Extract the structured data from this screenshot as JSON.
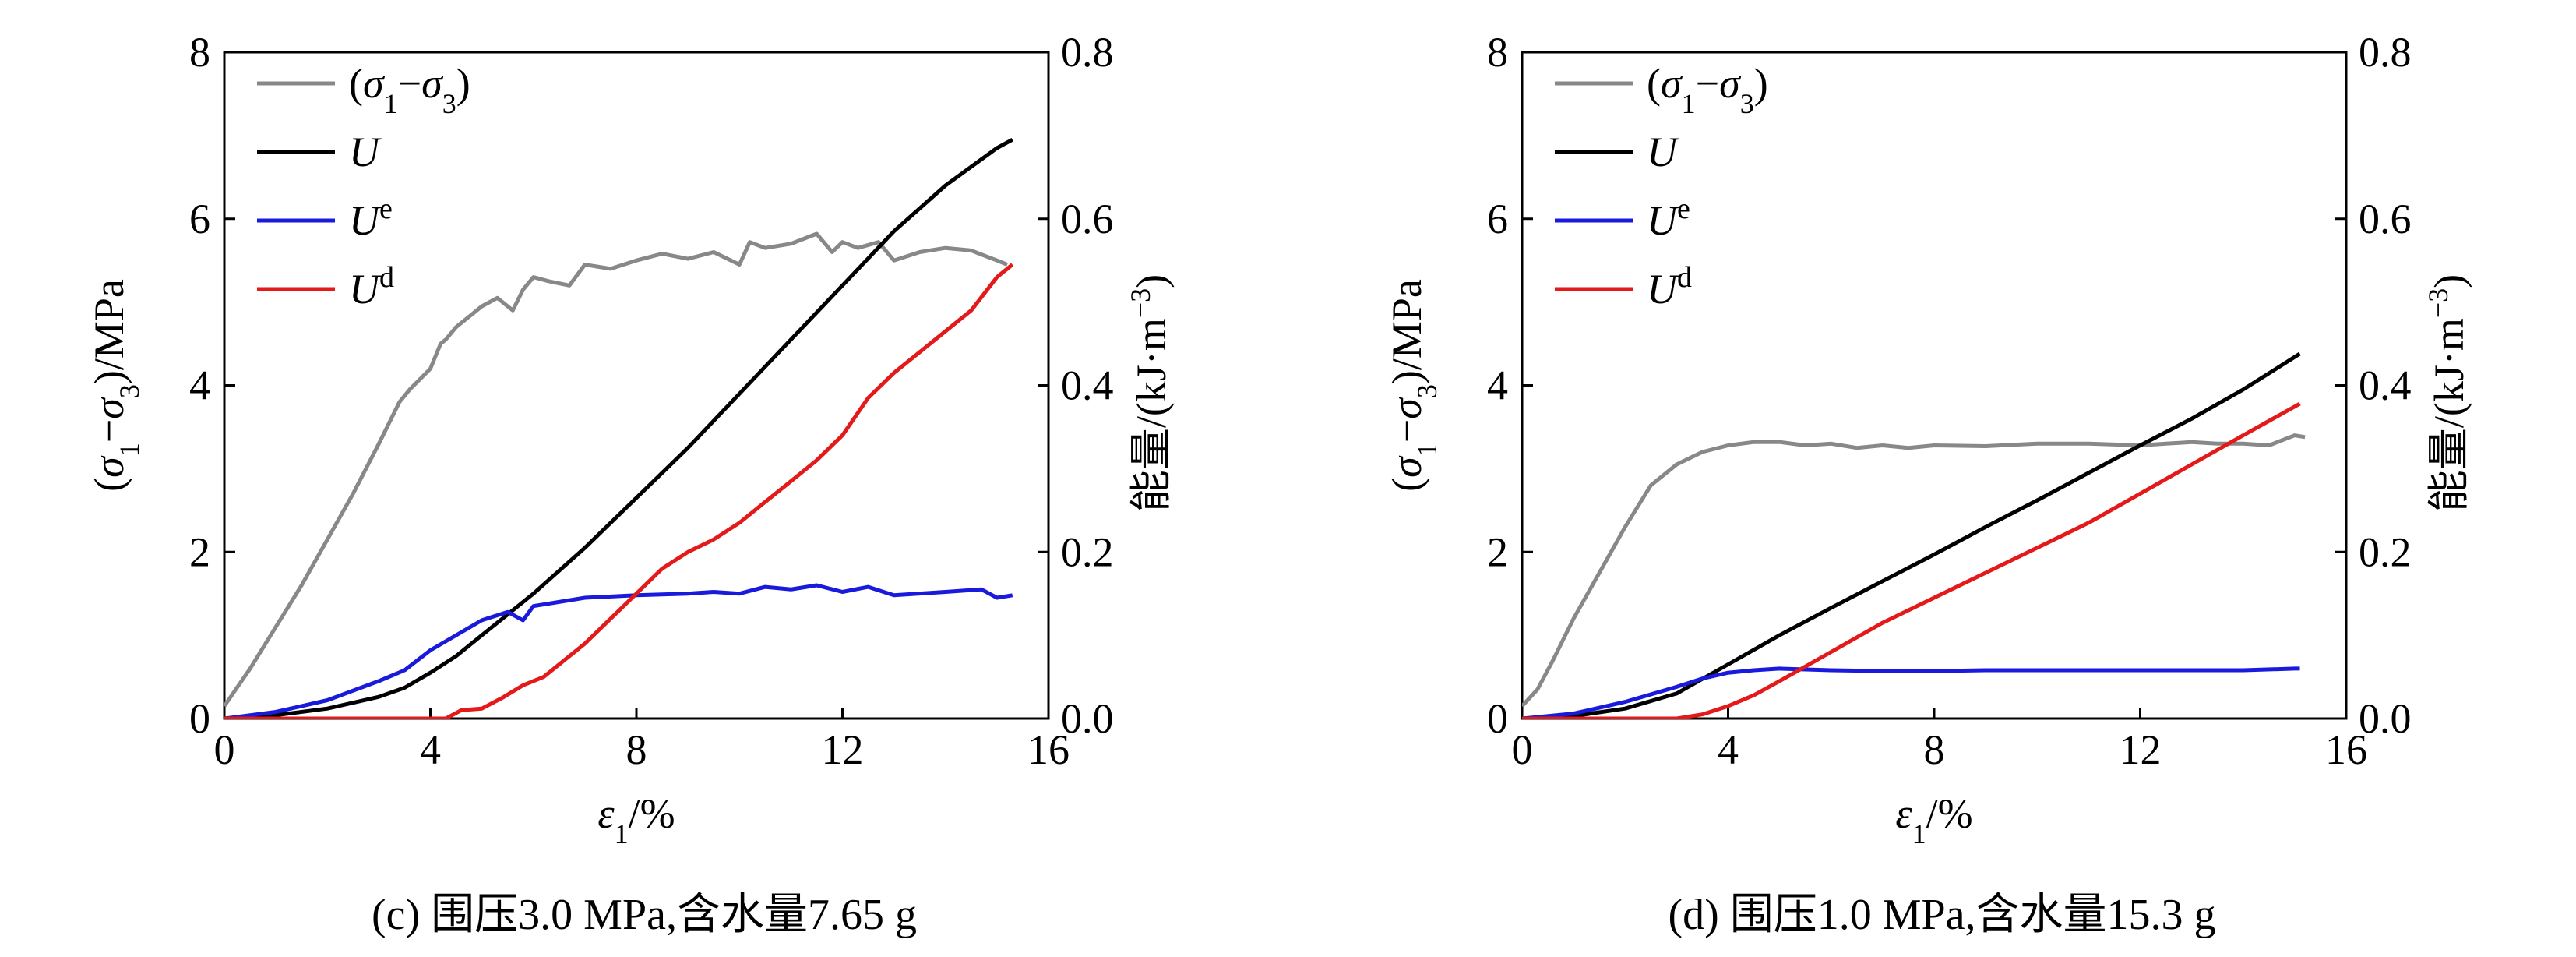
{
  "chart_data": [
    {
      "type": "line",
      "caption": "(c) 围压3.0 MPa,含水量7.65 g",
      "xlabel": "ε1/%",
      "ylabel_left": "(σ1−σ3)/MPa",
      "ylabel_right": "能量/(kJ·m−3)",
      "xlim": [
        0,
        16
      ],
      "ylim_left": [
        0,
        8
      ],
      "ylim_right": [
        0,
        0.8
      ],
      "xticks": [
        0,
        4,
        8,
        12,
        16
      ],
      "yticks_left": [
        0,
        2,
        4,
        6,
        8
      ],
      "yticks_right": [
        0.0,
        0.2,
        0.4,
        0.6,
        0.8
      ],
      "legend_position": "top-left",
      "grid": false,
      "series": [
        {
          "name": "(σ1−σ3)",
          "axis": "left",
          "color": "#888888",
          "x": [
            0,
            0.5,
            1,
            1.5,
            2,
            2.5,
            3,
            3.4,
            3.6,
            4,
            4.2,
            4.3,
            4.5,
            4.8,
            5,
            5.3,
            5.6,
            5.8,
            6,
            6.3,
            6.7,
            7,
            7.5,
            8,
            8.5,
            9,
            9.5,
            10,
            10.2,
            10.5,
            11,
            11.5,
            11.8,
            12,
            12.3,
            12.7,
            13,
            13.5,
            14,
            14.5,
            15,
            15.2
          ],
          "y": [
            0.15,
            0.6,
            1.1,
            1.6,
            2.15,
            2.7,
            3.3,
            3.8,
            3.95,
            4.2,
            4.5,
            4.55,
            4.7,
            4.85,
            4.95,
            5.05,
            4.9,
            5.15,
            5.3,
            5.25,
            5.2,
            5.45,
            5.4,
            5.5,
            5.58,
            5.52,
            5.6,
            5.45,
            5.72,
            5.65,
            5.7,
            5.82,
            5.6,
            5.72,
            5.65,
            5.72,
            5.5,
            5.6,
            5.65,
            5.62,
            5.5,
            5.45
          ]
        },
        {
          "name": "U",
          "axis": "right",
          "color": "#000000",
          "x": [
            0,
            1,
            2,
            3,
            3.5,
            4,
            4.5,
            5,
            6,
            7,
            8,
            9,
            10,
            11,
            12,
            13,
            14,
            15,
            15.3
          ],
          "y": [
            0,
            0.004,
            0.012,
            0.026,
            0.037,
            0.055,
            0.075,
            0.1,
            0.15,
            0.205,
            0.265,
            0.325,
            0.39,
            0.455,
            0.52,
            0.585,
            0.64,
            0.685,
            0.695
          ]
        },
        {
          "name": "Ue",
          "axis": "right",
          "color": "#1a1adc",
          "x": [
            0,
            1,
            2,
            3,
            3.5,
            4,
            4.5,
            5,
            5.5,
            5.8,
            6,
            6.5,
            7,
            8,
            9,
            9.5,
            10,
            10.5,
            11,
            11.5,
            12,
            12.5,
            13,
            14,
            14.7,
            15,
            15.3
          ],
          "y": [
            0,
            0.008,
            0.022,
            0.045,
            0.058,
            0.082,
            0.1,
            0.118,
            0.128,
            0.118,
            0.135,
            0.14,
            0.145,
            0.148,
            0.15,
            0.152,
            0.15,
            0.158,
            0.155,
            0.16,
            0.152,
            0.158,
            0.148,
            0.152,
            0.155,
            0.145,
            0.148
          ]
        },
        {
          "name": "Ud",
          "axis": "right",
          "color": "#e41a1a",
          "x": [
            0,
            3,
            4.3,
            4.6,
            5,
            5.4,
            5.8,
            6.2,
            6.6,
            7,
            7.5,
            8,
            8.5,
            9,
            9.5,
            10,
            10.5,
            11,
            11.5,
            12,
            12.5,
            13,
            13.5,
            14,
            14.5,
            15,
            15.3
          ],
          "y": [
            0,
            0,
            0,
            0.01,
            0.012,
            0.025,
            0.04,
            0.05,
            0.07,
            0.09,
            0.12,
            0.15,
            0.18,
            0.2,
            0.215,
            0.235,
            0.26,
            0.285,
            0.31,
            0.34,
            0.385,
            0.415,
            0.44,
            0.465,
            0.49,
            0.53,
            0.545
          ]
        }
      ]
    },
    {
      "type": "line",
      "caption": "(d) 围压1.0 MPa,含水量15.3 g",
      "xlabel": "ε1/%",
      "ylabel_left": "(σ1−σ3)/MPa",
      "ylabel_right": "能量/(kJ·m−3)",
      "xlim": [
        0,
        16
      ],
      "ylim_left": [
        0,
        8
      ],
      "ylim_right": [
        0,
        0.8
      ],
      "xticks": [
        0,
        4,
        8,
        12,
        16
      ],
      "yticks_left": [
        0,
        2,
        4,
        6,
        8
      ],
      "yticks_right": [
        0.0,
        0.2,
        0.4,
        0.6,
        0.8
      ],
      "legend_position": "top-left",
      "grid": false,
      "series": [
        {
          "name": "(σ1−σ3)",
          "axis": "left",
          "color": "#888888",
          "x": [
            0,
            0.3,
            0.6,
            1,
            1.5,
            2,
            2.5,
            3,
            3.5,
            4,
            4.5,
            5,
            5.5,
            6,
            6.5,
            7,
            7.5,
            8,
            9,
            10,
            11,
            12,
            12.5,
            13,
            13.5,
            14,
            14.5,
            15,
            15.2
          ],
          "y": [
            0.15,
            0.35,
            0.7,
            1.2,
            1.75,
            2.3,
            2.8,
            3.05,
            3.2,
            3.28,
            3.32,
            3.32,
            3.28,
            3.3,
            3.25,
            3.28,
            3.25,
            3.28,
            3.27,
            3.3,
            3.3,
            3.28,
            3.3,
            3.32,
            3.3,
            3.3,
            3.28,
            3.4,
            3.38
          ]
        },
        {
          "name": "U",
          "axis": "right",
          "color": "#000000",
          "x": [
            0,
            1,
            2,
            3,
            4,
            5,
            6,
            7,
            8,
            9,
            10,
            11,
            12,
            13,
            14,
            15.1
          ],
          "y": [
            0,
            0.003,
            0.012,
            0.03,
            0.065,
            0.1,
            0.133,
            0.165,
            0.197,
            0.23,
            0.262,
            0.295,
            0.328,
            0.36,
            0.395,
            0.438
          ]
        },
        {
          "name": "Ue",
          "axis": "right",
          "color": "#1a1adc",
          "x": [
            0,
            1,
            2,
            3,
            3.5,
            4,
            4.5,
            5,
            6,
            7,
            8,
            9,
            10,
            11,
            12,
            13,
            14,
            15,
            15.1
          ],
          "y": [
            0,
            0.006,
            0.02,
            0.038,
            0.048,
            0.055,
            0.058,
            0.06,
            0.058,
            0.057,
            0.057,
            0.058,
            0.058,
            0.058,
            0.058,
            0.058,
            0.058,
            0.06,
            0.06
          ]
        },
        {
          "name": "Ud",
          "axis": "right",
          "color": "#e41a1a",
          "x": [
            0,
            3,
            3.5,
            4,
            4.5,
            5,
            6,
            7,
            8,
            9,
            10,
            11,
            12,
            13,
            14,
            15.1
          ],
          "y": [
            0,
            0,
            0.005,
            0.015,
            0.028,
            0.045,
            0.08,
            0.115,
            0.145,
            0.175,
            0.205,
            0.235,
            0.27,
            0.305,
            0.34,
            0.378
          ]
        }
      ]
    }
  ]
}
